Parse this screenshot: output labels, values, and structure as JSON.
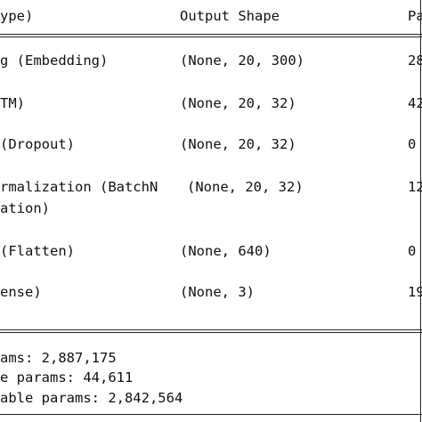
{
  "header": {
    "col_layer": "ype)",
    "col_output_shape": "Output Shape",
    "col_params": "Pa"
  },
  "rows": [
    {
      "layer": "g (Embedding)",
      "shape": "(None, 20, 300)",
      "params": "28"
    },
    {
      "layer": "TM)",
      "shape": "(None, 20, 32)",
      "params": "42"
    },
    {
      "layer": "(Dropout)",
      "shape": "(None, 20, 32)",
      "params": "0"
    },
    {
      "layer": "rmalization (BatchN",
      "layer_cont": "ation)",
      "shape": "(None, 20, 32)",
      "params": "12"
    },
    {
      "layer": "(Flatten)",
      "shape": "(None, 640)",
      "params": "0"
    },
    {
      "layer": "ense)",
      "shape": "(None, 3)",
      "params": "19"
    }
  ],
  "summary": {
    "total": "ams: 2,887,175",
    "trainable": "e params: 44,611",
    "non_trainable": "able params: 2,842,564"
  }
}
